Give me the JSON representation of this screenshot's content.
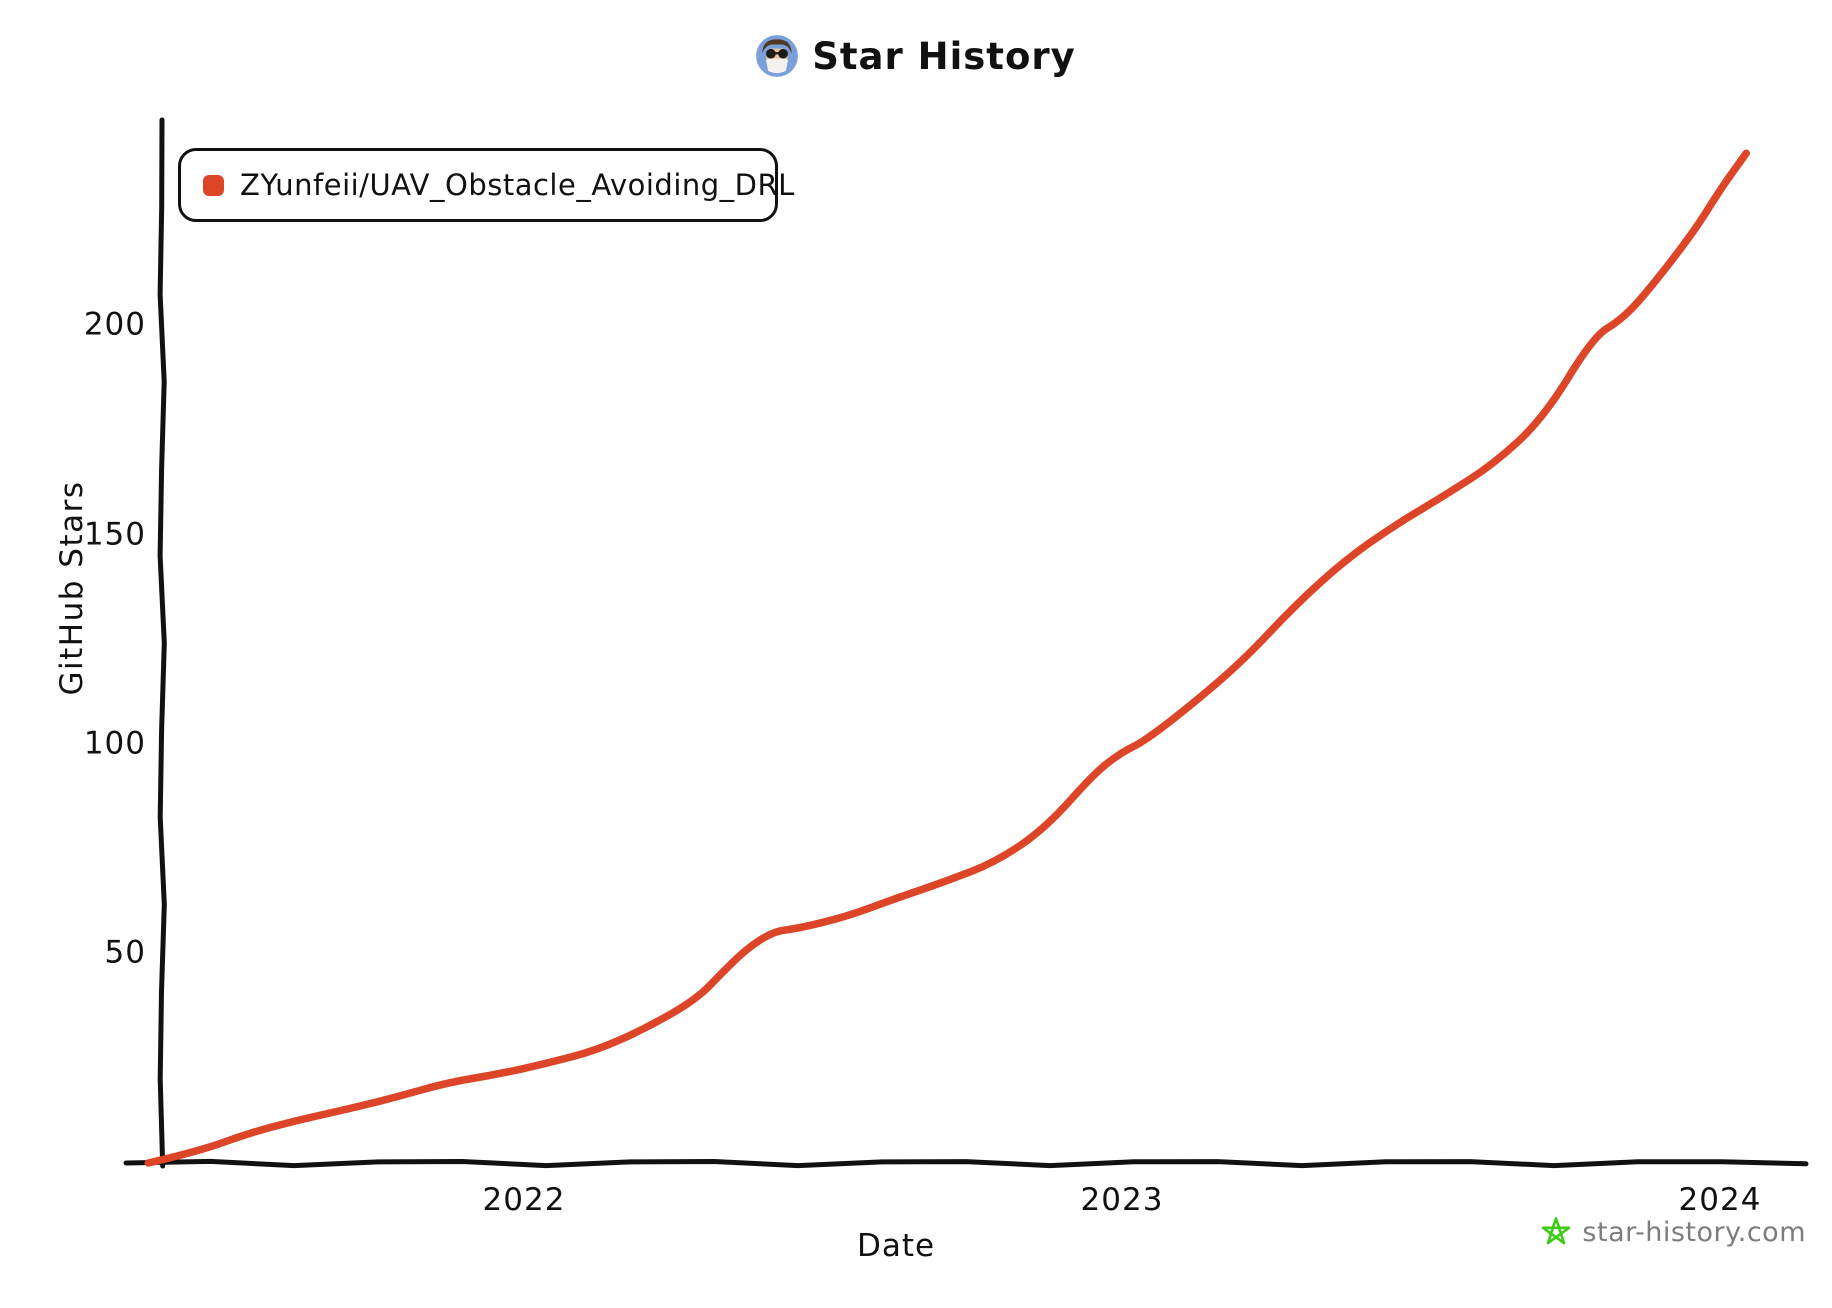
{
  "header": {
    "title": "Star History",
    "avatar_icon": "user-avatar"
  },
  "legend": {
    "marker_icon": "series-color-swatch"
  },
  "footer": {
    "site_label": "star-history.com",
    "logo_icon": "green-doodle-star",
    "logo_color": "#3ecb16",
    "text_color": "#7d7d7d"
  },
  "chart_data": {
    "type": "line",
    "title": "Star History",
    "xlabel": "Date",
    "ylabel": "GitHub Stars",
    "x_tick_labels": [
      "2022",
      "2023",
      "2024"
    ],
    "y_tick_labels": [
      "50",
      "100",
      "150",
      "200"
    ],
    "xlim": [
      "2021-05",
      "2024-02"
    ],
    "ylim": [
      0,
      248
    ],
    "grid": false,
    "legend_position": "top-left",
    "background": "#ffffff",
    "axis_color": "#111111",
    "series": [
      {
        "name": "ZYunfeii/UAV_Obstacle_Avoiding_DRL",
        "color": "#dd4528",
        "points": [
          [
            "2021-05-15",
            0
          ],
          [
            "2021-06-15",
            3
          ],
          [
            "2021-07-15",
            7
          ],
          [
            "2021-08-15",
            10
          ],
          [
            "2021-09-15",
            13
          ],
          [
            "2021-10-15",
            16
          ],
          [
            "2021-11-15",
            19
          ],
          [
            "2021-12-15",
            21
          ],
          [
            "2022-01-15",
            24
          ],
          [
            "2022-02-15",
            27
          ],
          [
            "2022-03-15",
            32
          ],
          [
            "2022-04-15",
            39
          ],
          [
            "2022-05-01",
            46
          ],
          [
            "2022-05-15",
            51
          ],
          [
            "2022-06-01",
            55
          ],
          [
            "2022-06-15",
            56
          ],
          [
            "2022-07-15",
            59
          ],
          [
            "2022-08-15",
            63
          ],
          [
            "2022-09-15",
            67
          ],
          [
            "2022-10-15",
            72
          ],
          [
            "2022-11-15",
            80
          ],
          [
            "2022-12-15",
            93
          ],
          [
            "2023-01-01",
            98
          ],
          [
            "2023-01-15",
            101
          ],
          [
            "2023-02-15",
            110
          ],
          [
            "2023-03-15",
            120
          ],
          [
            "2023-04-15",
            133
          ],
          [
            "2023-05-15",
            144
          ],
          [
            "2023-06-15",
            152
          ],
          [
            "2023-07-15",
            159
          ],
          [
            "2023-08-15",
            167
          ],
          [
            "2023-09-15",
            178
          ],
          [
            "2023-10-15",
            197
          ],
          [
            "2023-11-01",
            201
          ],
          [
            "2023-11-15",
            207
          ],
          [
            "2023-12-15",
            222
          ],
          [
            "2024-01-01",
            232
          ],
          [
            "2024-01-17",
            241
          ]
        ]
      }
    ]
  }
}
